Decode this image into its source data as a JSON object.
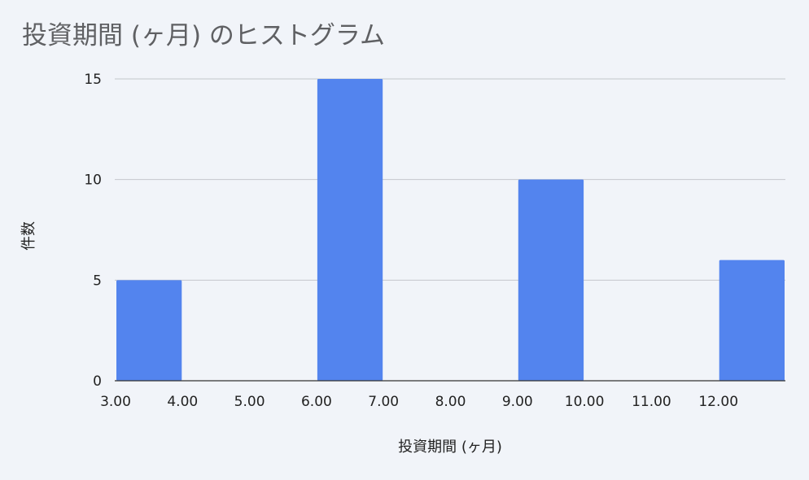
{
  "chart_data": {
    "type": "bar",
    "title": "投資期間 (ヶ月) のヒストグラム",
    "xlabel": "投資期間 (ヶ月)",
    "ylabel": "件数",
    "x_ticks": [
      "3.00",
      "4.00",
      "5.00",
      "6.00",
      "7.00",
      "8.00",
      "9.00",
      "10.00",
      "11.00",
      "12.00"
    ],
    "x_range": [
      3,
      13
    ],
    "bin_width": 1,
    "bins": [
      {
        "start": 3,
        "end": 4,
        "count": 5
      },
      {
        "start": 4,
        "end": 5,
        "count": 0
      },
      {
        "start": 5,
        "end": 6,
        "count": 0
      },
      {
        "start": 6,
        "end": 7,
        "count": 15
      },
      {
        "start": 7,
        "end": 8,
        "count": 0
      },
      {
        "start": 8,
        "end": 9,
        "count": 0
      },
      {
        "start": 9,
        "end": 10,
        "count": 10
      },
      {
        "start": 10,
        "end": 11,
        "count": 0
      },
      {
        "start": 11,
        "end": 12,
        "count": 0
      },
      {
        "start": 12,
        "end": 13,
        "count": 6
      }
    ],
    "y_ticks": [
      "0",
      "5",
      "10",
      "15"
    ],
    "ylim": [
      0,
      15
    ],
    "grid": true,
    "bar_color": "#5384ee",
    "grid_color": "#c4c7cc",
    "axis_color": "#333333"
  }
}
